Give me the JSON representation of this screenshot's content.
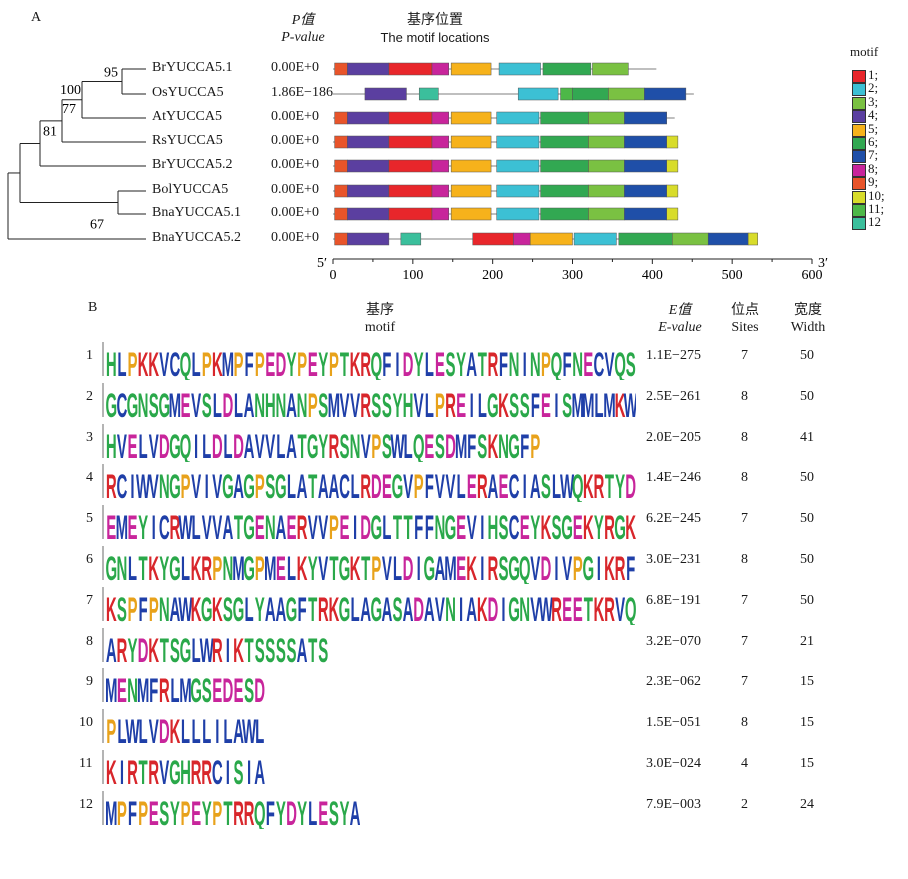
{
  "panel_a": {
    "label": "A",
    "pvalue_header": [
      "P值",
      "P-value"
    ],
    "location_header": [
      "基序位置",
      "The motif locations"
    ],
    "legend_title": "motif",
    "axis": {
      "left_end": "5′",
      "right_end": "3′",
      "ticks": [
        "0",
        "100",
        "200",
        "300",
        "400",
        "500",
        "600"
      ],
      "xlim": [
        0,
        600
      ]
    },
    "tree_support": [
      "95",
      "100",
      "77",
      "81",
      "67"
    ],
    "genes": [
      {
        "name": "BrYUCCA5.1",
        "pvalue": "0.00E+0",
        "length": 405
      },
      {
        "name": "OsYUCCA5",
        "pvalue": "1.86E-186",
        "length": 452
      },
      {
        "name": "AtYUCCA5",
        "pvalue": "0.00E+0",
        "length": 428
      },
      {
        "name": "RsYUCCA5",
        "pvalue": "0.00E+0",
        "length": 432
      },
      {
        "name": "BrYUCCA5.2",
        "pvalue": "0.00E+0",
        "length": 432
      },
      {
        "name": "BolYUCCA5",
        "pvalue": "0.00E+0",
        "length": 432
      },
      {
        "name": "BnaYUCCA5.1",
        "pvalue": "0.00E+0",
        "length": 432
      },
      {
        "name": "BnaYUCCA5.2",
        "pvalue": "0.00E+0",
        "length": 530
      }
    ],
    "motif_colors": {
      "1": "#e8262b",
      "2": "#3cc0d4",
      "3": "#7ac142",
      "4": "#5b3fa0",
      "5": "#f6b21b",
      "6": "#32a852",
      "7": "#1f4fa8",
      "8": "#c8259b",
      "9": "#e8542a",
      "10": "#d8dc2a",
      "11": "#4db848",
      "12": "#3bbf9c"
    },
    "legend": [
      "1;",
      "2;",
      "3;",
      "4;",
      "5;",
      "6;",
      "7;",
      "8;",
      "9;",
      "10;",
      "11;",
      "12"
    ],
    "motif_positions": [
      [
        {
          "m": "9",
          "s": 2,
          "e": 18
        },
        {
          "m": "4",
          "s": 18,
          "e": 70
        },
        {
          "m": "1",
          "s": 70,
          "e": 124
        },
        {
          "m": "8",
          "s": 124,
          "e": 145
        },
        {
          "m": "5",
          "s": 148,
          "e": 198
        },
        {
          "m": "2",
          "s": 208,
          "e": 260
        },
        {
          "m": "6",
          "s": 263,
          "e": 323
        },
        {
          "m": "3",
          "s": 325,
          "e": 370
        }
      ],
      [
        {
          "m": "4",
          "s": 40,
          "e": 92
        },
        {
          "m": "12",
          "s": 108,
          "e": 132
        },
        {
          "m": "2",
          "s": 232,
          "e": 282
        },
        {
          "m": "11",
          "s": 285,
          "e": 300
        },
        {
          "m": "6",
          "s": 300,
          "e": 345
        },
        {
          "m": "3",
          "s": 345,
          "e": 390
        },
        {
          "m": "7",
          "s": 390,
          "e": 442
        }
      ],
      [
        {
          "m": "9",
          "s": 2,
          "e": 18
        },
        {
          "m": "4",
          "s": 18,
          "e": 70
        },
        {
          "m": "1",
          "s": 70,
          "e": 124
        },
        {
          "m": "8",
          "s": 124,
          "e": 145
        },
        {
          "m": "5",
          "s": 148,
          "e": 198
        },
        {
          "m": "2",
          "s": 205,
          "e": 258
        },
        {
          "m": "6",
          "s": 260,
          "e": 320
        },
        {
          "m": "3",
          "s": 320,
          "e": 365
        },
        {
          "m": "7",
          "s": 365,
          "e": 418
        }
      ],
      [
        {
          "m": "9",
          "s": 2,
          "e": 18
        },
        {
          "m": "4",
          "s": 18,
          "e": 70
        },
        {
          "m": "1",
          "s": 70,
          "e": 124
        },
        {
          "m": "8",
          "s": 124,
          "e": 145
        },
        {
          "m": "5",
          "s": 148,
          "e": 198
        },
        {
          "m": "2",
          "s": 205,
          "e": 258
        },
        {
          "m": "6",
          "s": 260,
          "e": 320
        },
        {
          "m": "3",
          "s": 320,
          "e": 365
        },
        {
          "m": "7",
          "s": 365,
          "e": 418
        },
        {
          "m": "10",
          "s": 418,
          "e": 432
        }
      ],
      [
        {
          "m": "9",
          "s": 2,
          "e": 18
        },
        {
          "m": "4",
          "s": 18,
          "e": 70
        },
        {
          "m": "1",
          "s": 70,
          "e": 124
        },
        {
          "m": "8",
          "s": 124,
          "e": 145
        },
        {
          "m": "5",
          "s": 148,
          "e": 198
        },
        {
          "m": "2",
          "s": 205,
          "e": 258
        },
        {
          "m": "6",
          "s": 260,
          "e": 320
        },
        {
          "m": "3",
          "s": 320,
          "e": 365
        },
        {
          "m": "7",
          "s": 365,
          "e": 418
        },
        {
          "m": "10",
          "s": 418,
          "e": 432
        }
      ],
      [
        {
          "m": "9",
          "s": 2,
          "e": 18
        },
        {
          "m": "4",
          "s": 18,
          "e": 70
        },
        {
          "m": "1",
          "s": 70,
          "e": 124
        },
        {
          "m": "8",
          "s": 124,
          "e": 145
        },
        {
          "m": "5",
          "s": 148,
          "e": 198
        },
        {
          "m": "2",
          "s": 205,
          "e": 258
        },
        {
          "m": "6",
          "s": 260,
          "e": 320
        },
        {
          "m": "3",
          "s": 320,
          "e": 365
        },
        {
          "m": "7",
          "s": 365,
          "e": 418
        },
        {
          "m": "10",
          "s": 418,
          "e": 432
        }
      ],
      [
        {
          "m": "9",
          "s": 2,
          "e": 18
        },
        {
          "m": "4",
          "s": 18,
          "e": 70
        },
        {
          "m": "1",
          "s": 70,
          "e": 124
        },
        {
          "m": "8",
          "s": 124,
          "e": 145
        },
        {
          "m": "5",
          "s": 148,
          "e": 198
        },
        {
          "m": "2",
          "s": 205,
          "e": 258
        },
        {
          "m": "6",
          "s": 260,
          "e": 320
        },
        {
          "m": "3",
          "s": 320,
          "e": 365
        },
        {
          "m": "7",
          "s": 365,
          "e": 418
        },
        {
          "m": "10",
          "s": 418,
          "e": 432
        }
      ],
      [
        {
          "m": "9",
          "s": 2,
          "e": 18
        },
        {
          "m": "4",
          "s": 18,
          "e": 70
        },
        {
          "m": "12",
          "s": 85,
          "e": 110
        },
        {
          "m": "1",
          "s": 175,
          "e": 226
        },
        {
          "m": "8",
          "s": 226,
          "e": 247
        },
        {
          "m": "5",
          "s": 247,
          "e": 300
        },
        {
          "m": "2",
          "s": 302,
          "e": 355
        },
        {
          "m": "6",
          "s": 358,
          "e": 425
        },
        {
          "m": "3",
          "s": 425,
          "e": 470
        },
        {
          "m": "7",
          "s": 470,
          "e": 520
        },
        {
          "m": "10",
          "s": 520,
          "e": 532
        }
      ]
    ]
  },
  "panel_b": {
    "label": "B",
    "motif_header": [
      "基序",
      "motif"
    ],
    "evalue_header": [
      "E值",
      "E-value"
    ],
    "sites_header": [
      "位点",
      "Sites"
    ],
    "width_header": [
      "宽度",
      "Width"
    ],
    "rows": [
      {
        "id": "1",
        "seq": "HLPKKVCQLPKMPFPEDYPEYPTKRQFIDYLESYATRFNINPQFNECVQS",
        "evalue": "1.1E-275",
        "sites": "7",
        "width": "50"
      },
      {
        "id": "2",
        "seq": "GCGNSGMEVSLDLANHNANPSMVVRSSYHVLPREILGKSSFEISMMLMKW",
        "evalue": "2.5E-261",
        "sites": "8",
        "width": "50"
      },
      {
        "id": "3",
        "seq": "HVELVDGQILDLDAVVLATGYRSNVPSWLQESDMFSKNGFP",
        "evalue": "2.0E-205",
        "sites": "8",
        "width": "41"
      },
      {
        "id": "4",
        "seq": "RCIWVNGPVIVGAGPSGLATAACLRDEGVPFVVLERAECIASLWQKRTYD",
        "evalue": "1.4E-246",
        "sites": "8",
        "width": "50"
      },
      {
        "id": "5",
        "seq": "EMEYICRWLVVATGENAERVVPEIDGLTTFFNGEVIHSCEYKSGEKYRGK",
        "evalue": "6.2E-245",
        "sites": "7",
        "width": "50"
      },
      {
        "id": "6",
        "seq": "GNLTKYGLKRPNMGPMELKYVTGKTPVLDIGAMEKIRSGQVDIVPGIKRF",
        "evalue": "3.0E-231",
        "sites": "8",
        "width": "50"
      },
      {
        "id": "7",
        "seq": "KSPFPNAWKGKSGLYAAGFTRKGLAGASADAVNIAKDIGNVWREETKRVQ",
        "evalue": "6.8E-191",
        "sites": "7",
        "width": "50"
      },
      {
        "id": "8",
        "seq": "ARYDKTSGLWRIKTSSSSATS",
        "evalue": "3.2E-070",
        "sites": "7",
        "width": "21"
      },
      {
        "id": "9",
        "seq": "MENMFRLMGSEDESD",
        "evalue": "2.3E-062",
        "sites": "7",
        "width": "15"
      },
      {
        "id": "10",
        "seq": "PLWLVDKLLLILAWL",
        "evalue": "1.5E-051",
        "sites": "8",
        "width": "15"
      },
      {
        "id": "11",
        "seq": "KIRTRVGHRRCISIA",
        "evalue": "3.0E-024",
        "sites": "4",
        "width": "15"
      },
      {
        "id": "12",
        "seq": "MPFPESYPEYPTRRQFYDYLESYA",
        "evalue": "7.9E-003",
        "sites": "2",
        "width": "24"
      }
    ],
    "residue_colors": {
      "hydrophobic": "#1f3fa8",
      "polar": "#2aa84a",
      "basic": "#d8262b",
      "acidic": "#c8259b",
      "special": "#e8a21b"
    }
  }
}
